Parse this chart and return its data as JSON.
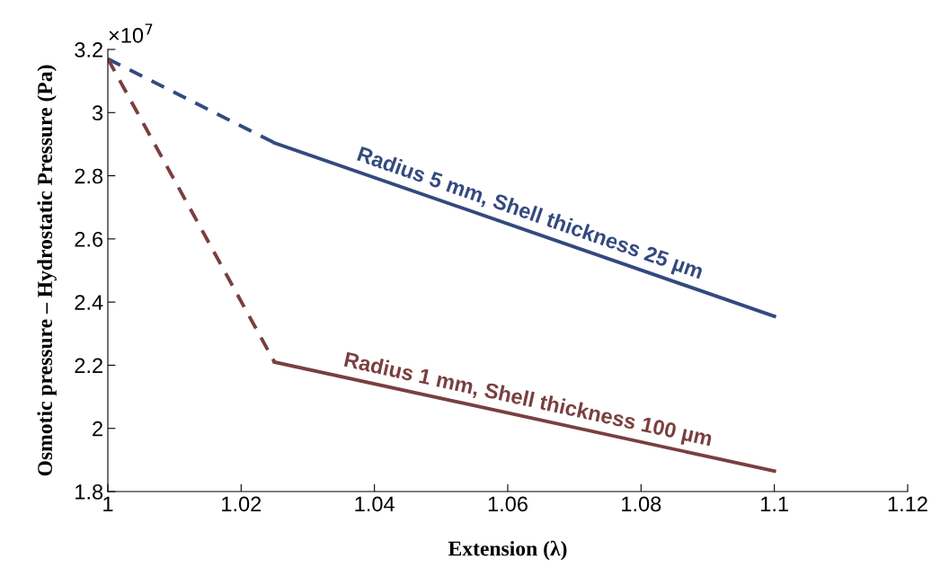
{
  "chart_data": {
    "type": "line",
    "xlabel": "Extension (λ)",
    "ylabel": "Osmotic pressure – Hydrostatic Pressure (Pa)",
    "series": [
      {
        "color": "#34497f",
        "line_style": "dashed",
        "x": [
          1.0,
          1.025
        ],
        "values": [
          3.17,
          2.904
        ]
      },
      {
        "color": "#34497f",
        "line_style": "solid",
        "x": [
          1.025,
          1.1
        ],
        "values": [
          2.904,
          2.355
        ]
      },
      {
        "color": "#7a3f3f",
        "line_style": "dashed",
        "x": [
          1.0,
          1.025
        ],
        "values": [
          3.17,
          2.21
        ]
      },
      {
        "color": "#7a3f3f",
        "line_style": "solid",
        "x": [
          1.025,
          1.1
        ],
        "values": [
          2.21,
          1.865
        ]
      }
    ],
    "xlim": [
      1.0,
      1.12
    ],
    "xticks": [
      1,
      1.02,
      1.04,
      1.06,
      1.08,
      1.1,
      1.12
    ],
    "ylim": [
      1.8,
      3.2
    ],
    "yticks": [
      1.8,
      2,
      2.2,
      2.4,
      2.6,
      2.8,
      3,
      3.2
    ],
    "annotations": [
      "×10$^{7}$",
      "Radius 5 mm, Shell thickness 25 µm",
      "Radius 1 mm, Shell thickness 100 µm"
    ],
    "grid": false,
    "legend": false
  }
}
